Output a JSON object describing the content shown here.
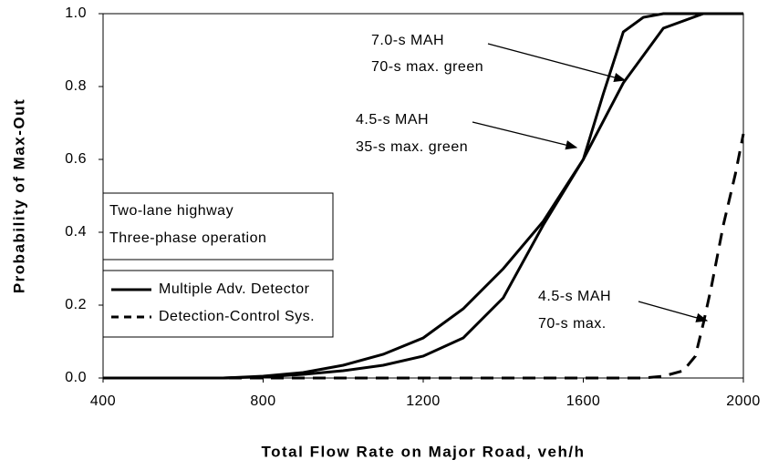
{
  "chart_data": {
    "type": "line",
    "xlabel": "Total Flow Rate on Major Road, veh/h",
    "ylabel": "Probability of Max-Out",
    "xlim": [
      400,
      2000
    ],
    "xticks": [
      400,
      800,
      1200,
      1600,
      2000
    ],
    "ylim": [
      0,
      1
    ],
    "yticks": [
      {
        "value": 0,
        "label": "0.0"
      },
      {
        "value": 0.2,
        "label": "0.2"
      },
      {
        "value": 0.4,
        "label": "0.4"
      },
      {
        "value": 0.6,
        "label": "0.6"
      },
      {
        "value": 0.8,
        "label": "0.8"
      },
      {
        "value": 1,
        "label": "1.0"
      }
    ],
    "info_box": [
      "Two-lane highway",
      "Three-phase operation"
    ],
    "legend": [
      {
        "label": "Multiple Adv. Detector",
        "dash": "solid"
      },
      {
        "label": "Detection-Control Sys.",
        "dash": "dashed"
      }
    ],
    "series": [
      {
        "annotation": [
          "7.0-s MAH",
          "70-s max. green"
        ],
        "dash": "solid",
        "color": "#000000",
        "x": [
          400,
          500,
          600,
          700,
          800,
          900,
          1000,
          1100,
          1200,
          1300,
          1400,
          1500,
          1600,
          1700,
          1800,
          1900,
          2000
        ],
        "values": [
          0,
          0,
          0,
          0,
          0.005,
          0.015,
          0.035,
          0.065,
          0.11,
          0.19,
          0.3,
          0.43,
          0.6,
          0.81,
          0.96,
          1,
          1
        ]
      },
      {
        "annotation": [
          "4.5-s MAH",
          "35-s max. green"
        ],
        "dash": "solid",
        "color": "#000000",
        "x": [
          400,
          500,
          600,
          700,
          800,
          900,
          1000,
          1100,
          1200,
          1300,
          1400,
          1500,
          1600,
          1650,
          1700,
          1750,
          1800,
          1900,
          2000
        ],
        "values": [
          0,
          0,
          0,
          0,
          0.003,
          0.01,
          0.02,
          0.035,
          0.06,
          0.11,
          0.22,
          0.42,
          0.6,
          0.78,
          0.95,
          0.99,
          1,
          1,
          1
        ]
      },
      {
        "annotation": [
          "4.5-s MAH",
          "70-s max."
        ],
        "dash": "dashed",
        "color": "#000000",
        "x": [
          400,
          800,
          1200,
          1600,
          1750,
          1800,
          1850,
          1880,
          1900,
          1920,
          1950,
          1980,
          2000
        ],
        "values": [
          0,
          0,
          0,
          0,
          0,
          0.005,
          0.02,
          0.06,
          0.15,
          0.25,
          0.42,
          0.56,
          0.67
        ]
      }
    ]
  }
}
